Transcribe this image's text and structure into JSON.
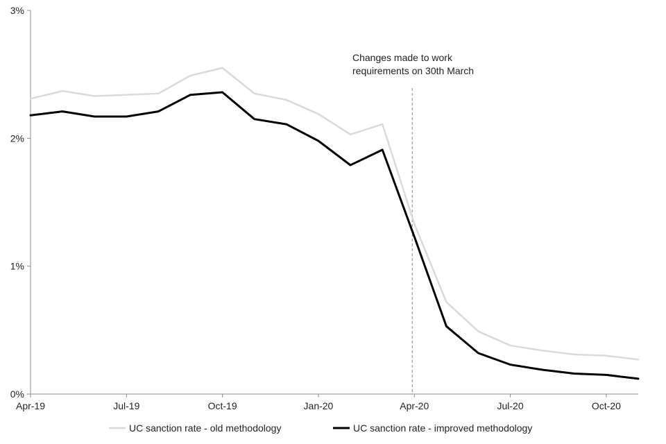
{
  "chart_data": {
    "type": "line",
    "title": "",
    "xlabel": "",
    "ylabel": "",
    "x": [
      "Apr-19",
      "May-19",
      "Jun-19",
      "Jul-19",
      "Aug-19",
      "Sep-19",
      "Oct-19",
      "Nov-19",
      "Dec-19",
      "Jan-20",
      "Feb-20",
      "Mar-20",
      "Apr-20",
      "May-20",
      "Jun-20",
      "Jul-20",
      "Aug-20",
      "Sep-20",
      "Oct-20",
      "Nov-20"
    ],
    "x_tick_labels": [
      "Apr-19",
      "Jul-19",
      "Oct-19",
      "Jan-20",
      "Apr-20",
      "Jul-20",
      "Oct-20"
    ],
    "y_ticks": [
      0,
      1,
      2,
      3
    ],
    "y_tick_labels": [
      "0%",
      "1%",
      "2%",
      "3%"
    ],
    "ylim": [
      0,
      3
    ],
    "grid": false,
    "legend_position": "bottom",
    "series": [
      {
        "name": "UC sanction rate - old methodology",
        "color": "#d9d9d9",
        "values": [
          2.31,
          2.37,
          2.33,
          2.34,
          2.35,
          2.49,
          2.55,
          2.35,
          2.3,
          2.19,
          2.03,
          2.11,
          1.33,
          0.72,
          0.49,
          0.38,
          0.34,
          0.31,
          0.3,
          0.27
        ]
      },
      {
        "name": "UC sanction rate - improved methodology",
        "color": "#000000",
        "values": [
          2.18,
          2.21,
          2.17,
          2.17,
          2.21,
          2.34,
          2.36,
          2.15,
          2.11,
          1.98,
          1.79,
          1.91,
          1.23,
          0.53,
          0.32,
          0.23,
          0.19,
          0.16,
          0.15,
          0.12
        ]
      }
    ],
    "annotation": {
      "line1": "Changes made to work",
      "line2": "requirements on 30th March",
      "x": "Apr-20"
    }
  }
}
